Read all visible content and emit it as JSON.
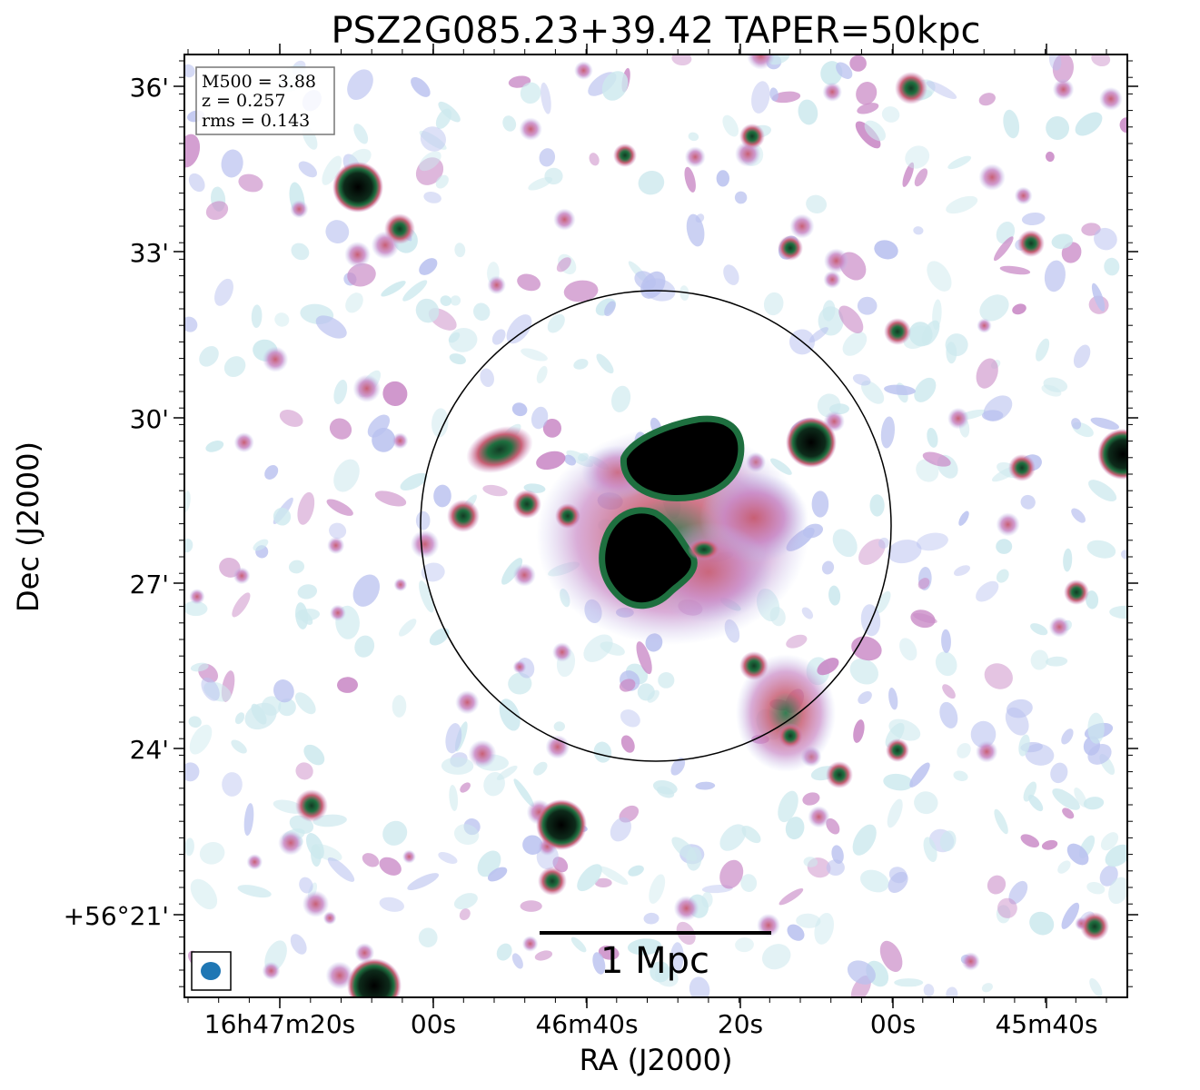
{
  "title": "PSZ2G085.23+39.42 TAPER=50kpc",
  "info_box": {
    "mass": "M500 = 3.88",
    "redshift": "z = 0.257",
    "rms": "rms = 0.143"
  },
  "scale_bar": {
    "label": "1 Mpc"
  },
  "axes": {
    "x_label": "RA (J2000)",
    "y_label": "Dec (J2000)",
    "x_ticks": [
      "16h47m20s",
      "00s",
      "46m40s",
      "20s",
      "00s",
      "45m40s"
    ],
    "y_ticks": [
      "36'",
      "33'",
      "30'",
      "27'",
      "24'",
      "+56°21'"
    ]
  },
  "colormap": [
    "#ffffff",
    "#cde9ee",
    "#b9c1ef",
    "#c989c6",
    "#c85f74",
    "#1e6f3f",
    "#000000"
  ]
}
